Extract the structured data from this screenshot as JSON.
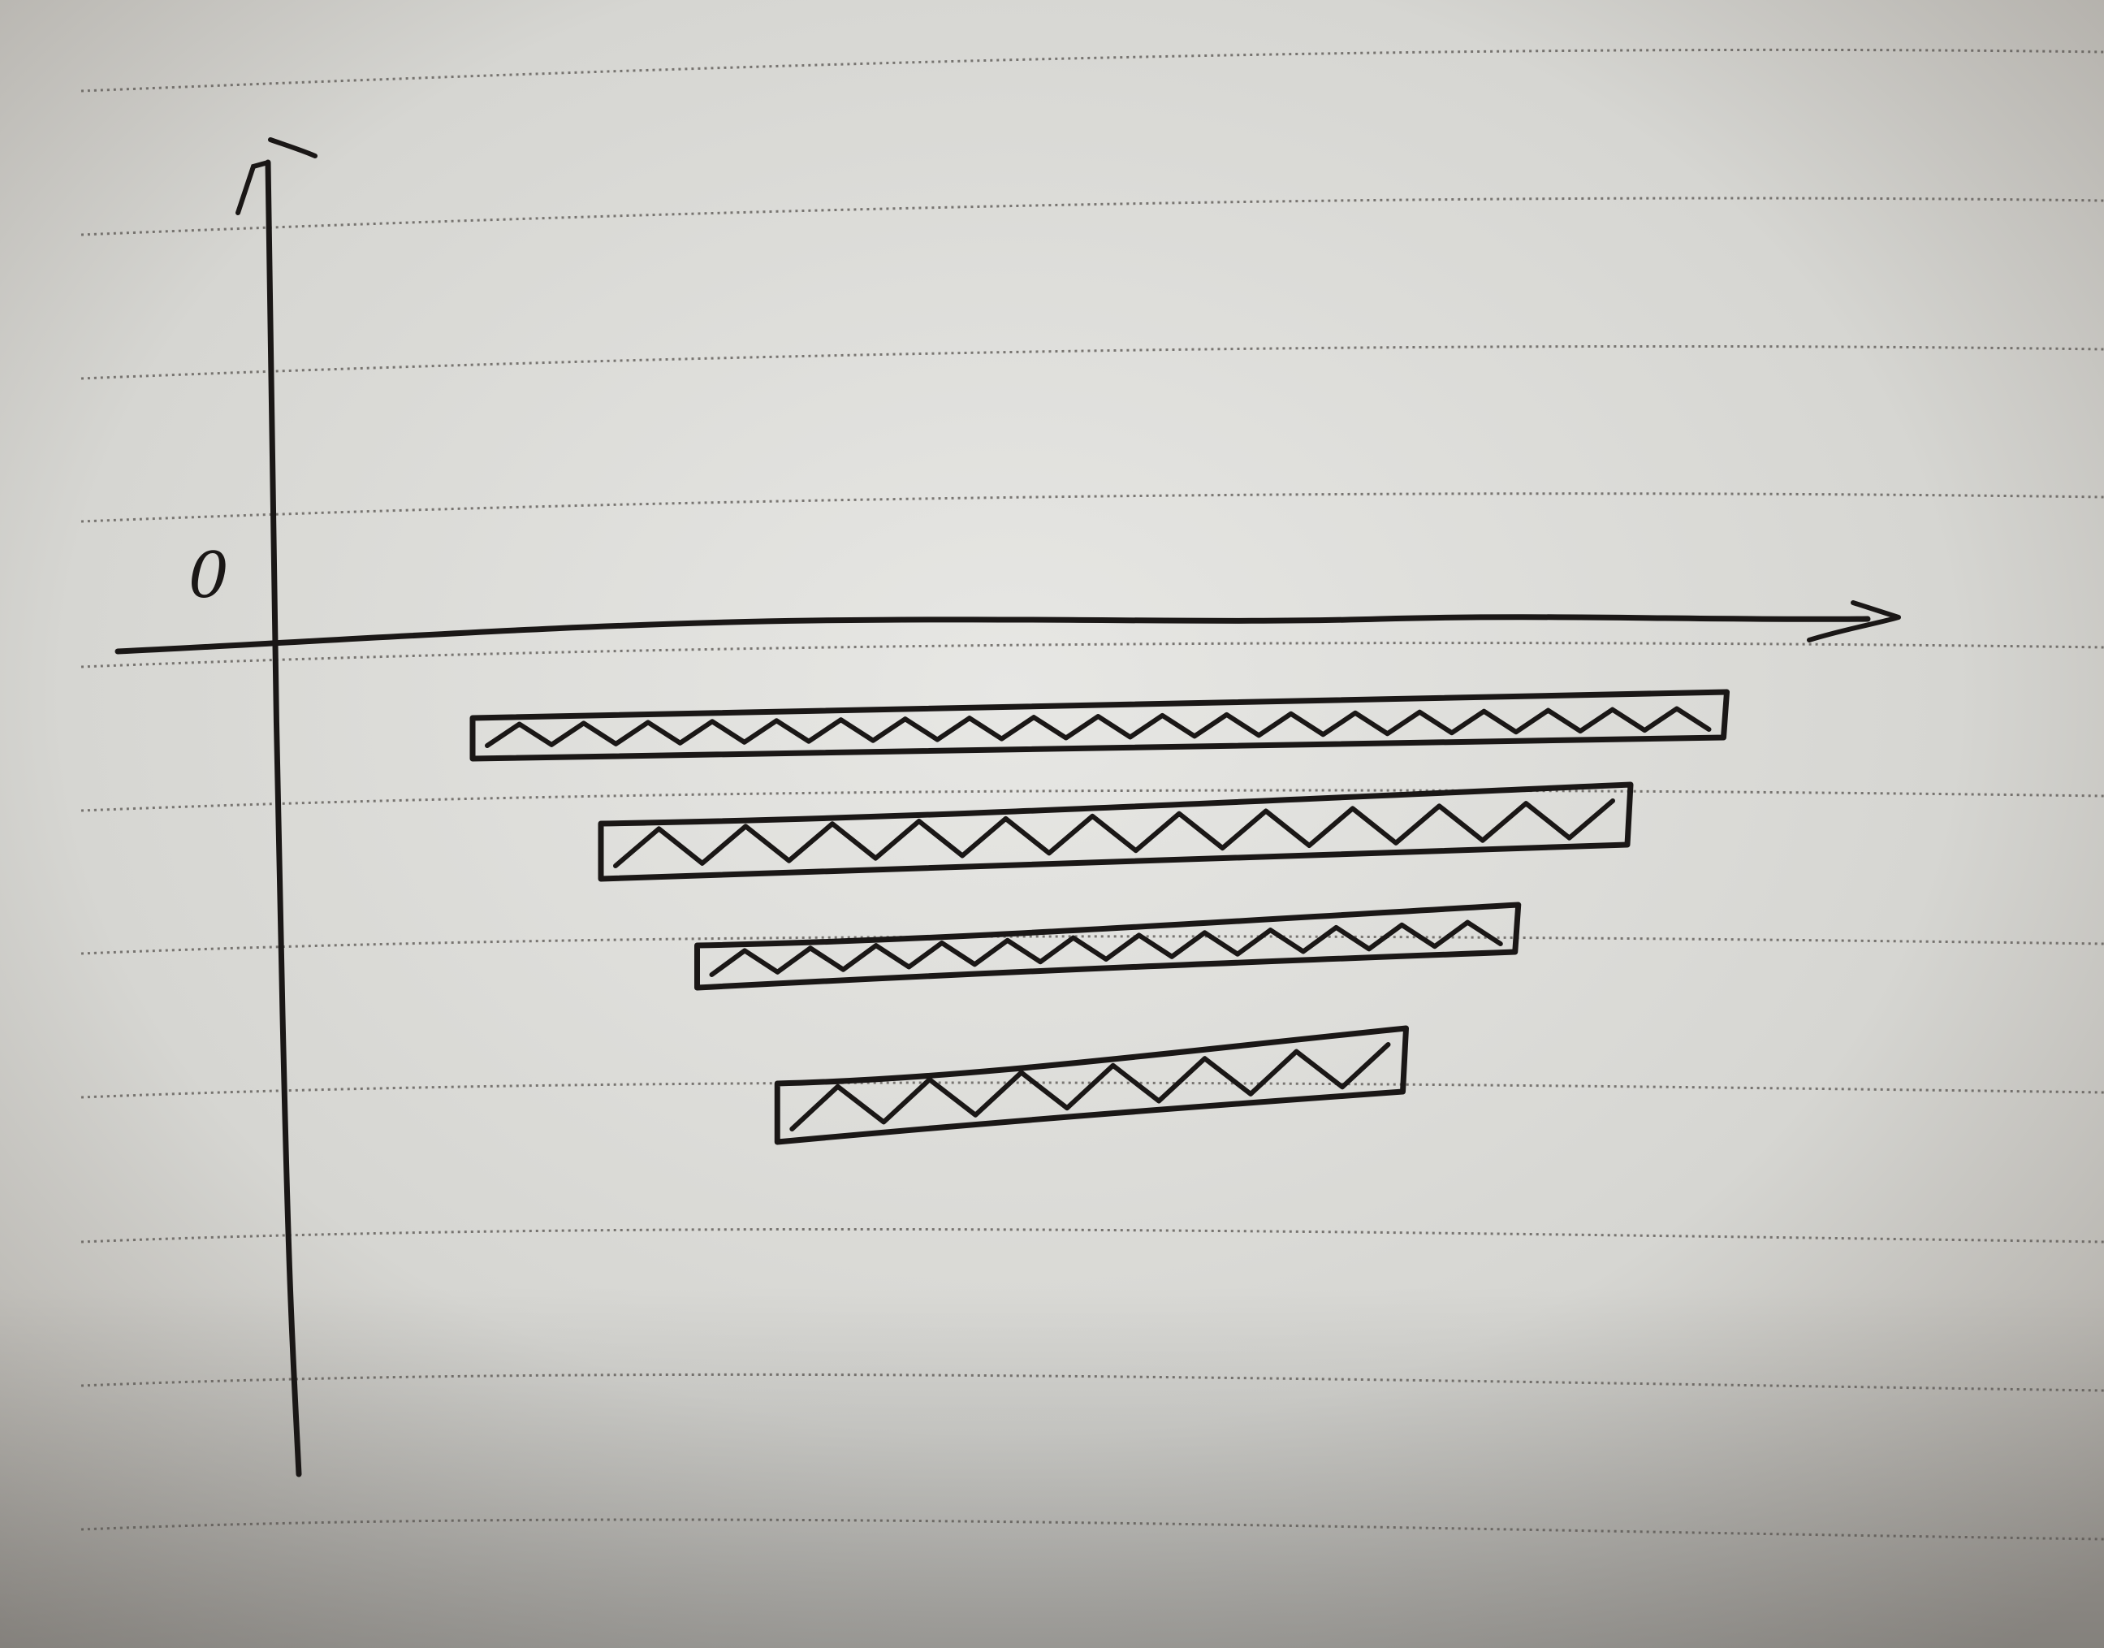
{
  "sheet": {
    "paper_color": "#dcdcd8",
    "ink_color": "#1a1716",
    "rule_color": "#55524e"
  },
  "axes": {
    "origin_label": "0",
    "y_axis_arrow": true,
    "x_axis_arrow": true
  },
  "chart_data": {
    "type": "bar",
    "orientation": "horizontal",
    "fill_pattern": "zigzag-hatch",
    "x_axis_side": "top",
    "bars": [
      {
        "start": 0.12,
        "end": 0.9
      },
      {
        "start": 0.2,
        "end": 0.84
      },
      {
        "start": 0.26,
        "end": 0.77
      },
      {
        "start": 0.31,
        "end": 0.7
      }
    ]
  }
}
